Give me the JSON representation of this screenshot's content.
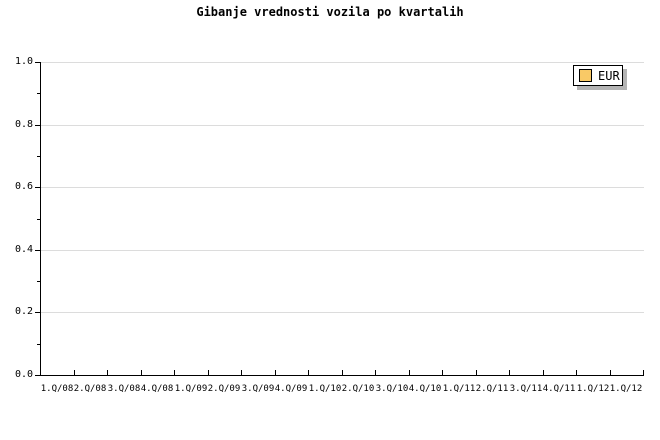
{
  "title": "Gibanje vrednosti vozila po kvartalih",
  "legend": {
    "position": "top-right",
    "items": [
      {
        "label": "EUR",
        "swatch_color": "#F9C966"
      }
    ]
  },
  "chart_data": {
    "type": "line",
    "title": "Gibanje vrednosti vozila po kvartalih",
    "categories": [
      "1.Q/08",
      "2.Q/08",
      "3.Q/08",
      "4.Q/08",
      "1.Q/09",
      "2.Q/09",
      "3.Q/09",
      "4.Q/09",
      "1.Q/10",
      "2.Q/10",
      "3.Q/10",
      "4.Q/10",
      "1.Q/11",
      "2.Q/11",
      "3.Q/11",
      "4.Q/11",
      "1.Q/12",
      "1.Q/12"
    ],
    "series": [
      {
        "name": "EUR",
        "color": "#F9C966",
        "values": []
      }
    ],
    "xlabel": "",
    "ylabel": "",
    "ylim": [
      0.0,
      1.0
    ],
    "ytick_labels": [
      "1.0",
      "0.8",
      "0.6",
      "0.4",
      "0.2",
      "0.0"
    ],
    "ytick_step": 0.2,
    "minor_ytick_step": 0.1,
    "grid": "horizontal-major",
    "legend_position": "top-right",
    "plot_empty": true
  },
  "colors": {
    "background": "#FFFFFF",
    "axis": "#000000",
    "text": "#000000",
    "gridline": "#DCDCDC",
    "legend_shadow": "#B4B4B4",
    "series_eur": "#F9C966"
  }
}
